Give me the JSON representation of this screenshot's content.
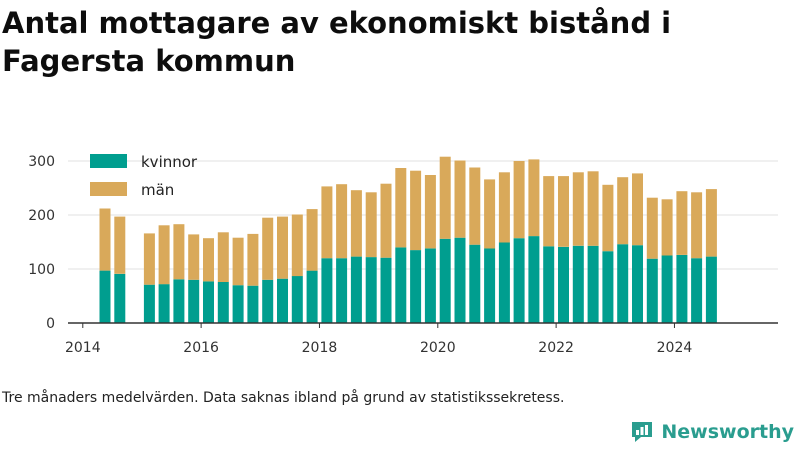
{
  "title": "Antal mottagare av ekonomiskt bistånd i Fagersta kommun",
  "note": "Tre månaders medelvärden. Data saknas ibland på grund av statistikssekretess.",
  "brand": "Newsworthy",
  "colors": {
    "kvinnor": "#009e8f",
    "man": "#d9a95a",
    "grid": "#e2e2e2",
    "axis": "#333333",
    "brand": "#2a9d8f"
  },
  "chart_data": {
    "type": "bar",
    "stacked": true,
    "x_label": "",
    "y_label": "",
    "ylim": [
      0,
      300
    ],
    "y_ticks": [
      0,
      100,
      200,
      300
    ],
    "x_ticks": [
      "2014",
      "2016",
      "2018",
      "2020",
      "2022",
      "2024"
    ],
    "x_range": [
      "2013-10",
      "2025-10"
    ],
    "grid": true,
    "legend_position": "top-left",
    "categories": [
      "2014-05",
      "2014-08",
      "2015-02",
      "2015-05",
      "2015-08",
      "2015-11",
      "2016-02",
      "2016-05",
      "2016-08",
      "2016-11",
      "2017-02",
      "2017-05",
      "2017-08",
      "2017-11",
      "2018-02",
      "2018-05",
      "2018-08",
      "2018-11",
      "2019-02",
      "2019-05",
      "2019-08",
      "2019-11",
      "2020-02",
      "2020-05",
      "2020-08",
      "2020-11",
      "2021-02",
      "2021-05",
      "2021-08",
      "2021-11",
      "2022-02",
      "2022-05",
      "2022-08",
      "2022-11",
      "2023-02",
      "2023-05",
      "2023-08",
      "2023-11",
      "2024-02",
      "2024-05",
      "2024-08"
    ],
    "series": [
      {
        "name": "kvinnor",
        "values": [
          97,
          91,
          71,
          72,
          81,
          80,
          77,
          76,
          70,
          69,
          80,
          82,
          87,
          97,
          120,
          120,
          123,
          122,
          121,
          140,
          135,
          138,
          156,
          158,
          145,
          138,
          149,
          157,
          161,
          142,
          141,
          143,
          143,
          133,
          146,
          144,
          119,
          125,
          126,
          120,
          123
        ]
      },
      {
        "name": "män",
        "values": [
          115,
          106,
          95,
          109,
          102,
          84,
          80,
          92,
          88,
          96,
          115,
          115,
          114,
          114,
          133,
          137,
          123,
          120,
          137,
          147,
          147,
          136,
          152,
          143,
          143,
          128,
          130,
          143,
          142,
          130,
          131,
          136,
          138,
          123,
          124,
          133,
          113,
          104,
          118,
          122,
          125
        ]
      }
    ]
  }
}
